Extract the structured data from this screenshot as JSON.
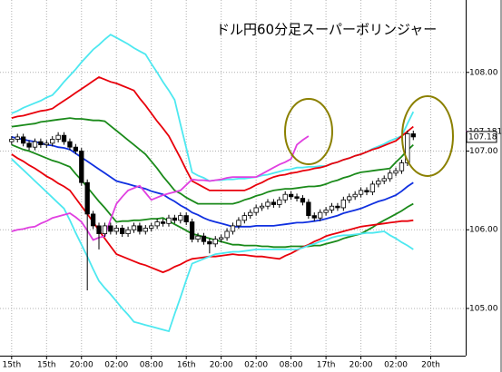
{
  "chart_data": {
    "type": "candlestick",
    "title": "ドル円60分足スーパーボリンジャー",
    "xlim": [
      -2,
      78
    ],
    "ylim": [
      104.4,
      108.92
    ],
    "grid": true,
    "xticks": [
      {
        "value": 0,
        "label": "15th"
      },
      {
        "value": 6,
        "label": "15th"
      },
      {
        "value": 12,
        "label": "20:00"
      },
      {
        "value": 18,
        "label": "02:00"
      },
      {
        "value": 24,
        "label": "08:00"
      },
      {
        "value": 30,
        "label": "16th"
      },
      {
        "value": 36,
        "label": "20:00"
      },
      {
        "value": 42,
        "label": "02:00"
      },
      {
        "value": 48,
        "label": "08:00"
      },
      {
        "value": 54,
        "label": "17th"
      },
      {
        "value": 60,
        "label": "20:00"
      },
      {
        "value": 66,
        "label": "02:00"
      },
      {
        "value": 72,
        "label": "20th"
      }
    ],
    "yticks": [
      {
        "value": 105,
        "label": "105.00"
      },
      {
        "value": 106,
        "label": "106.00"
      },
      {
        "value": 107,
        "label": "107.00"
      },
      {
        "value": 108,
        "label": "108.00"
      }
    ],
    "price_labels": [
      {
        "value": 107.181,
        "label": "107.181",
        "color": "#e040e0"
      },
      {
        "value": 107.18,
        "label": "107.18",
        "color": "#000000"
      }
    ],
    "up_color": "#ffffff",
    "down_color": "#000000",
    "x": [
      0,
      1,
      2,
      3,
      4,
      5,
      6,
      7,
      8,
      9,
      10,
      11,
      12,
      13,
      14,
      15,
      16,
      17,
      18,
      19,
      20,
      21,
      22,
      23,
      24,
      25,
      26,
      27,
      28,
      29,
      30,
      31,
      32,
      33,
      34,
      35,
      36,
      37,
      38,
      39,
      40,
      41,
      42,
      43,
      44,
      45,
      46,
      47,
      48,
      49,
      50,
      51,
      52,
      53,
      54,
      55,
      56,
      57,
      58,
      59,
      60,
      61,
      62,
      63,
      64,
      65,
      66,
      67,
      68,
      69
    ],
    "open": [
      107.12,
      107.15,
      107.18,
      107.1,
      107.05,
      107.12,
      107.08,
      107.1,
      107.15,
      107.2,
      107.12,
      107.05,
      107.0,
      106.6,
      106.2,
      106.05,
      105.95,
      106.05,
      105.98,
      106.02,
      105.95,
      106.0,
      106.05,
      105.98,
      106.02,
      106.05,
      106.1,
      106.08,
      106.15,
      106.12,
      106.18,
      106.1,
      105.88,
      105.92,
      105.85,
      105.82,
      105.88,
      105.9,
      105.98,
      106.05,
      106.12,
      106.18,
      106.22,
      106.28,
      106.3,
      106.35,
      106.32,
      106.38,
      106.45,
      106.42,
      106.4,
      106.35,
      106.18,
      106.15,
      106.22,
      106.25,
      106.3,
      106.28,
      106.38,
      106.42,
      106.45,
      106.5,
      106.48,
      106.58,
      106.62,
      106.65,
      106.72,
      106.75,
      106.85,
      107.22
    ],
    "high": [
      107.19,
      107.22,
      107.22,
      107.14,
      107.16,
      107.16,
      107.14,
      107.19,
      107.24,
      107.24,
      107.16,
      107.09,
      107.04,
      106.64,
      106.24,
      106.09,
      106.09,
      106.09,
      106.06,
      106.06,
      106.04,
      106.09,
      106.09,
      106.06,
      106.09,
      106.14,
      106.14,
      106.19,
      106.19,
      106.22,
      106.22,
      106.14,
      105.96,
      105.96,
      105.89,
      105.92,
      105.94,
      106.02,
      106.09,
      106.16,
      106.22,
      106.26,
      106.32,
      106.34,
      106.39,
      106.39,
      106.42,
      106.49,
      106.49,
      106.46,
      106.44,
      106.39,
      106.22,
      106.26,
      106.29,
      106.34,
      106.34,
      106.42,
      106.46,
      106.49,
      106.54,
      106.54,
      106.62,
      106.66,
      106.69,
      106.76,
      106.79,
      106.89,
      107.26,
      107.26
    ],
    "low": [
      107.08,
      107.11,
      107.06,
      107.01,
      107.01,
      107.04,
      107.04,
      107.06,
      107.11,
      107.08,
      107.01,
      106.96,
      106.56,
      105.23,
      106.01,
      105.75,
      105.91,
      105.94,
      105.94,
      105.91,
      105.91,
      105.96,
      105.94,
      105.94,
      105.98,
      106.01,
      106.04,
      106.04,
      106.08,
      106.08,
      106.06,
      105.84,
      105.84,
      105.81,
      105.7,
      105.78,
      105.84,
      105.86,
      105.94,
      106.01,
      106.08,
      106.14,
      106.18,
      106.24,
      106.26,
      106.28,
      106.28,
      106.34,
      106.38,
      106.36,
      106.31,
      106.14,
      106.11,
      106.11,
      106.18,
      106.21,
      106.24,
      106.24,
      106.34,
      106.38,
      106.41,
      106.44,
      106.44,
      106.54,
      106.58,
      106.61,
      106.68,
      106.71,
      106.81,
      107.14
    ],
    "close": [
      107.15,
      107.18,
      107.1,
      107.05,
      107.12,
      107.08,
      107.1,
      107.15,
      107.2,
      107.12,
      107.05,
      107.0,
      106.6,
      106.2,
      106.05,
      105.95,
      106.05,
      105.98,
      106.02,
      105.95,
      106.0,
      106.05,
      105.98,
      106.02,
      106.05,
      106.1,
      106.08,
      106.15,
      106.12,
      106.18,
      106.1,
      105.88,
      105.92,
      105.85,
      105.82,
      105.88,
      105.9,
      105.98,
      106.05,
      106.12,
      106.18,
      106.22,
      106.28,
      106.3,
      106.35,
      106.32,
      106.38,
      106.45,
      106.42,
      106.4,
      106.35,
      106.18,
      106.15,
      106.22,
      106.25,
      106.3,
      106.28,
      106.38,
      106.42,
      106.45,
      106.5,
      106.48,
      106.58,
      106.62,
      106.65,
      106.72,
      106.75,
      106.85,
      107.22,
      107.18
    ],
    "series": [
      {
        "color": "#4de8f0",
        "values": [
          107.48,
          107.51,
          107.55,
          107.58,
          107.61,
          107.64,
          107.68,
          107.71,
          107.79,
          107.88,
          107.96,
          108.04,
          108.13,
          108.21,
          108.29,
          108.35,
          108.42,
          108.48,
          108.44,
          108.4,
          108.36,
          108.31,
          108.27,
          108.23,
          108.11,
          108.0,
          107.88,
          107.77,
          107.65,
          107.34,
          107.04,
          106.73,
          106.69,
          106.66,
          106.62,
          106.63,
          106.63,
          106.64,
          106.64,
          106.65,
          106.65,
          106.66,
          106.67,
          106.69,
          106.7,
          106.72,
          106.74,
          106.76,
          106.77,
          106.79,
          106.79,
          106.8,
          106.8,
          106.81,
          106.81,
          106.84,
          106.86,
          106.89,
          106.91,
          106.94,
          106.96,
          106.99,
          107.03,
          107.06,
          107.09,
          107.13,
          107.16,
          107.19,
          107.35,
          107.5
        ]
      },
      {
        "color": "#e8000b",
        "values": [
          107.42,
          107.44,
          107.45,
          107.47,
          107.49,
          107.51,
          107.52,
          107.54,
          107.59,
          107.64,
          107.69,
          107.74,
          107.79,
          107.84,
          107.89,
          107.94,
          107.91,
          107.88,
          107.86,
          107.83,
          107.8,
          107.77,
          107.67,
          107.58,
          107.48,
          107.38,
          107.29,
          107.19,
          107.05,
          106.91,
          106.76,
          106.62,
          106.58,
          106.54,
          106.5,
          106.5,
          106.5,
          106.5,
          106.5,
          106.5,
          106.5,
          106.53,
          106.57,
          106.6,
          106.64,
          106.67,
          106.69,
          106.7,
          106.72,
          106.73,
          106.75,
          106.76,
          106.78,
          106.79,
          106.81,
          106.84,
          106.86,
          106.89,
          106.91,
          106.94,
          106.96,
          106.99,
          107.02,
          107.04,
          107.07,
          107.1,
          107.13,
          107.19,
          107.25,
          107.31
        ]
      },
      {
        "color": "#1a8a1a",
        "values": [
          107.31,
          107.32,
          107.33,
          107.34,
          107.35,
          107.37,
          107.38,
          107.39,
          107.4,
          107.41,
          107.42,
          107.41,
          107.41,
          107.4,
          107.39,
          107.39,
          107.38,
          107.32,
          107.26,
          107.2,
          107.14,
          107.08,
          107.02,
          106.96,
          106.87,
          106.78,
          106.68,
          106.59,
          106.5,
          106.46,
          106.41,
          106.37,
          106.33,
          106.33,
          106.33,
          106.33,
          106.33,
          106.33,
          106.33,
          106.35,
          106.38,
          106.4,
          106.43,
          106.45,
          106.48,
          106.5,
          106.51,
          106.52,
          106.52,
          106.53,
          106.54,
          106.55,
          106.55,
          106.56,
          106.58,
          106.61,
          106.63,
          106.66,
          106.68,
          106.71,
          106.73,
          106.74,
          106.75,
          106.76,
          106.77,
          106.78,
          106.86,
          106.93,
          107.01,
          107.08
        ]
      },
      {
        "color": "#1030e0",
        "values": [
          107.18,
          107.16,
          107.15,
          107.13,
          107.12,
          107.1,
          107.08,
          107.07,
          107.05,
          107.04,
          107.02,
          106.97,
          106.92,
          106.87,
          106.82,
          106.77,
          106.72,
          106.67,
          106.62,
          106.6,
          106.58,
          106.56,
          106.54,
          106.52,
          106.49,
          106.47,
          106.45,
          106.4,
          106.36,
          106.31,
          106.27,
          106.22,
          106.19,
          106.15,
          106.12,
          106.1,
          106.08,
          106.06,
          106.04,
          106.04,
          106.04,
          106.04,
          106.05,
          106.05,
          106.05,
          106.05,
          106.06,
          106.07,
          106.08,
          106.09,
          106.09,
          106.1,
          106.11,
          106.12,
          106.14,
          106.16,
          106.18,
          106.21,
          106.23,
          106.25,
          106.27,
          106.3,
          106.33,
          106.36,
          106.38,
          106.41,
          106.44,
          106.49,
          106.55,
          106.6
        ]
      },
      {
        "color": "#1a8a1a",
        "values": [
          107.08,
          107.05,
          107.02,
          107.0,
          106.97,
          106.94,
          106.91,
          106.88,
          106.86,
          106.83,
          106.8,
          106.71,
          106.63,
          106.54,
          106.45,
          106.36,
          106.28,
          106.19,
          106.1,
          106.11,
          106.11,
          106.12,
          106.12,
          106.13,
          106.14,
          106.14,
          106.15,
          106.11,
          106.07,
          106.03,
          105.99,
          105.95,
          105.93,
          105.91,
          105.89,
          105.87,
          105.85,
          105.83,
          105.81,
          105.81,
          105.8,
          105.8,
          105.8,
          105.79,
          105.79,
          105.78,
          105.78,
          105.78,
          105.79,
          105.79,
          105.79,
          105.79,
          105.8,
          105.8,
          105.82,
          105.84,
          105.86,
          105.89,
          105.91,
          105.93,
          105.95,
          105.99,
          106.03,
          106.08,
          106.12,
          106.16,
          106.2,
          106.24,
          106.29,
          106.33
        ]
      },
      {
        "color": "#e8000b",
        "values": [
          106.96,
          106.91,
          106.87,
          106.82,
          106.78,
          106.73,
          106.68,
          106.64,
          106.59,
          106.55,
          106.5,
          106.4,
          106.3,
          106.2,
          106.1,
          105.99,
          105.89,
          105.79,
          105.69,
          105.66,
          105.63,
          105.6,
          105.57,
          105.55,
          105.52,
          105.49,
          105.46,
          105.49,
          105.53,
          105.56,
          105.6,
          105.63,
          105.64,
          105.65,
          105.66,
          105.66,
          105.67,
          105.68,
          105.69,
          105.68,
          105.68,
          105.67,
          105.66,
          105.66,
          105.65,
          105.64,
          105.63,
          105.67,
          105.7,
          105.74,
          105.78,
          105.81,
          105.85,
          105.88,
          105.92,
          105.94,
          105.96,
          105.98,
          106.0,
          106.02,
          106.04,
          106.05,
          106.06,
          106.07,
          106.08,
          106.09,
          106.1,
          106.11,
          106.11,
          106.12
        ]
      },
      {
        "color": "#4de8f0",
        "values": [
          106.9,
          106.83,
          106.76,
          106.69,
          106.62,
          106.55,
          106.48,
          106.41,
          106.34,
          106.27,
          106.12,
          105.96,
          105.81,
          105.66,
          105.5,
          105.35,
          105.26,
          105.18,
          105.09,
          105.0,
          104.92,
          104.83,
          104.81,
          104.79,
          104.77,
          104.75,
          104.73,
          104.71,
          104.93,
          105.14,
          105.36,
          105.57,
          105.6,
          105.63,
          105.66,
          105.69,
          105.7,
          105.71,
          105.72,
          105.72,
          105.73,
          105.74,
          105.75,
          105.75,
          105.75,
          105.75,
          105.75,
          105.75,
          105.75,
          105.75,
          105.77,
          105.8,
          105.82,
          105.85,
          105.87,
          105.9,
          105.92,
          105.93,
          105.93,
          105.94,
          105.95,
          105.96,
          105.96,
          105.97,
          105.98,
          105.93,
          105.89,
          105.84,
          105.8,
          105.75
        ]
      },
      {
        "color": "#e040e0",
        "values": [
          105.98,
          106.0,
          106.01,
          106.03,
          106.04,
          106.08,
          106.11,
          106.15,
          106.17,
          106.19,
          106.21,
          106.16,
          106.1,
          105.99,
          105.87,
          105.9,
          105.92,
          106.13,
          106.33,
          106.42,
          106.5,
          106.53,
          106.56,
          106.47,
          106.38,
          106.41,
          106.44,
          106.46,
          106.48,
          106.5,
          106.57,
          106.64,
          106.63,
          106.63,
          106.62,
          106.63,
          106.64,
          106.66,
          106.67,
          106.67,
          106.67,
          106.67,
          106.67,
          106.71,
          106.75,
          106.79,
          106.83,
          106.86,
          106.9,
          107.08,
          107.14,
          107.19,
          null,
          null,
          null,
          null,
          null,
          null,
          null,
          null,
          null,
          null,
          null,
          null,
          null,
          null,
          null,
          null,
          null,
          null
        ]
      }
    ]
  }
}
